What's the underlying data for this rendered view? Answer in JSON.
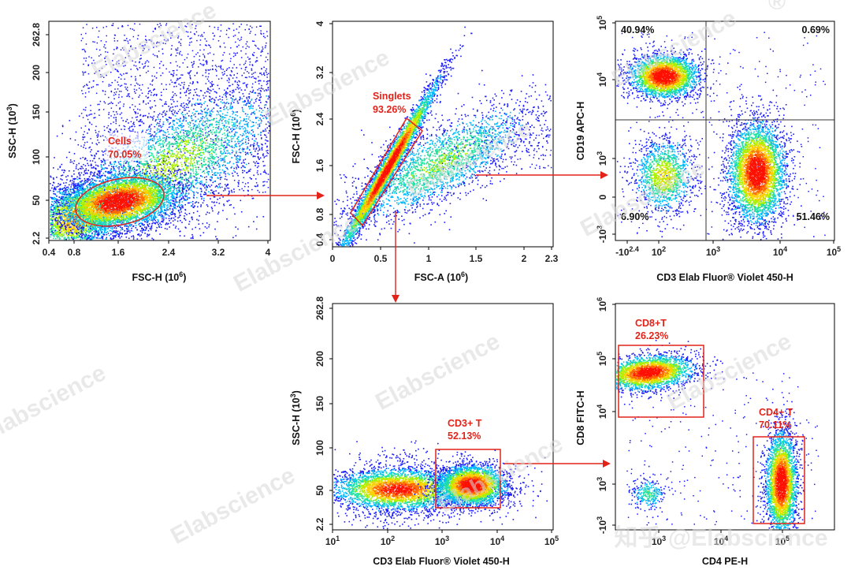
{
  "watermark": {
    "text": "Elabscience",
    "registered": "®",
    "footer": "知乎 @Elabscience"
  },
  "colors": {
    "gate": "#e2231a",
    "arrow": "#e2231a",
    "axis": "#000000",
    "density": [
      "#1a1aff",
      "#00b8ff",
      "#20e0a0",
      "#a8f000",
      "#ffd000",
      "#ff6a00",
      "#ff1000"
    ]
  },
  "chart_data": [
    {
      "id": "p1",
      "type": "scatter",
      "subtype": "density-dot-plot",
      "xlabel": "FSC-H (10^6)",
      "ylabel": "SSC-H (10^3)",
      "xticks": [
        "0.4",
        "0.8",
        "1.6",
        "2.4",
        "3.2",
        "4"
      ],
      "yticks": [
        "262.8",
        "200",
        "150",
        "100",
        "50",
        "2.2"
      ],
      "gates": [
        {
          "name": "Cells",
          "value": "70.05%",
          "shape": "ellipse"
        }
      ]
    },
    {
      "id": "p2",
      "type": "scatter",
      "subtype": "density-dot-plot",
      "xlabel": "FSC-A (10^6)",
      "ylabel": "FSC-H (10^6)",
      "xticks": [
        "0",
        "0.5",
        "1",
        "1.5",
        "2",
        "2.3"
      ],
      "yticks": [
        "4",
        "3.2",
        "2.4",
        "1.6",
        "0.8",
        "0.4"
      ],
      "gates": [
        {
          "name": "Singlets",
          "value": "93.26%",
          "shape": "polygon"
        }
      ]
    },
    {
      "id": "p3",
      "type": "scatter",
      "subtype": "density-dot-plot",
      "xlabel": "CD3 Elab Fluor® Violet 450-H",
      "ylabel": "CD19 APC-H",
      "xticks": [
        "-10^2.4",
        "10^2",
        "10^3",
        "10^4",
        "10^5"
      ],
      "yticks": [
        "10^5",
        "10^4",
        "10^3",
        "0",
        "-10^3"
      ],
      "quadrants": {
        "top_left": "40.94%",
        "top_right": "0.69%",
        "bottom_left": "6.90%",
        "bottom_right": "51.46%"
      }
    },
    {
      "id": "p4",
      "type": "scatter",
      "subtype": "density-dot-plot",
      "xlabel": "CD3 Elab Fluor® Violet 450-H",
      "ylabel": "SSC-H (10^3)",
      "xticks": [
        "10^1",
        "10^2",
        "10^3",
        "10^4",
        "10^5"
      ],
      "yticks": [
        "262.8",
        "200",
        "150",
        "100",
        "50",
        "2.2"
      ],
      "gates": [
        {
          "name": "CD3+ T",
          "value": "52.13%",
          "shape": "rectangle"
        }
      ]
    },
    {
      "id": "p5",
      "type": "scatter",
      "subtype": "density-dot-plot",
      "xlabel": "CD4 PE-H",
      "ylabel": "CD8 FITC-H",
      "xticks": [
        "10^3",
        "10^4",
        "10^5"
      ],
      "yticks": [
        "10^6",
        "10^5",
        "10^4",
        "10^3",
        "-10^3"
      ],
      "gates": [
        {
          "name": "CD8+T",
          "value": "26.23%",
          "shape": "rectangle"
        },
        {
          "name": "CD4+ T",
          "value": "70.11%",
          "shape": "rectangle"
        }
      ]
    }
  ]
}
